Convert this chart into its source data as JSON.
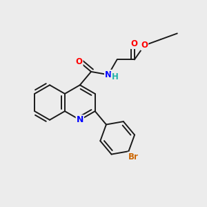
{
  "background_color": "#ececec",
  "bond_color": "#1a1a1a",
  "bond_width": 1.4,
  "atom_colors": {
    "N": "#0000ff",
    "O": "#ff0000",
    "Br": "#cc6600",
    "H": "#20b2aa",
    "C": "#1a1a1a"
  },
  "font_size_atom": 8.5,
  "figsize": [
    3.0,
    3.0
  ],
  "dpi": 100
}
